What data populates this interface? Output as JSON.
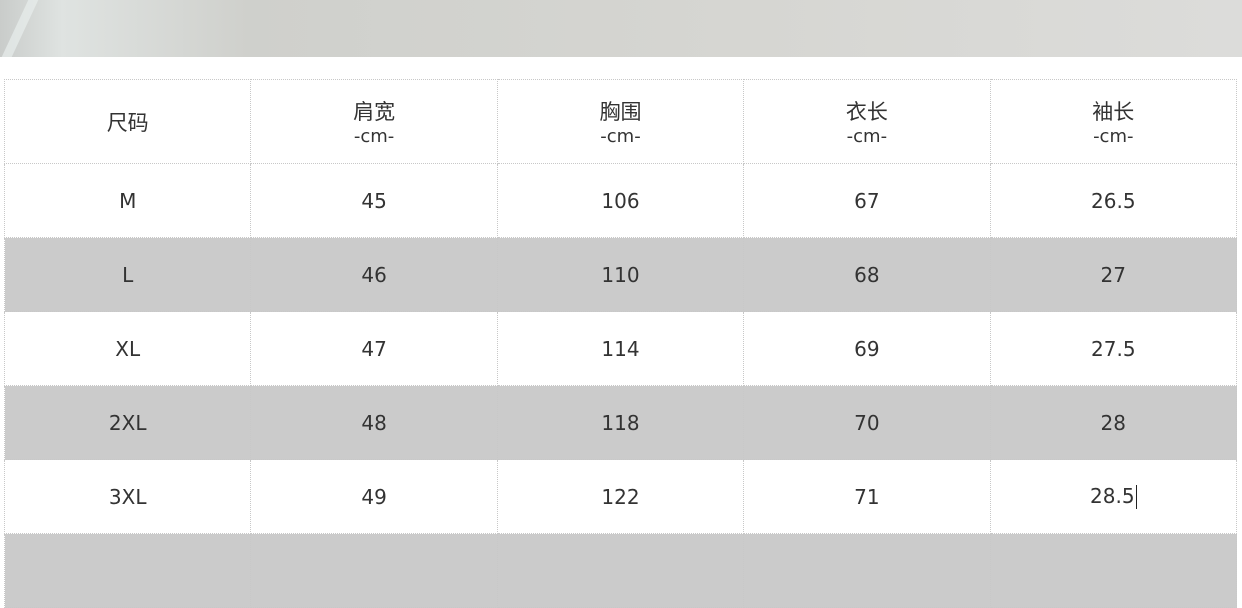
{
  "header": [
    {
      "name": "尺码",
      "unit": ""
    },
    {
      "name": "肩宽",
      "unit": "-cm-"
    },
    {
      "name": "胸围",
      "unit": "-cm-"
    },
    {
      "name": "衣长",
      "unit": "-cm-"
    },
    {
      "name": "袖长",
      "unit": "-cm-"
    }
  ],
  "rows": [
    [
      "M",
      "45",
      "106",
      "67",
      "26.5"
    ],
    [
      "L",
      "46",
      "110",
      "68",
      "27"
    ],
    [
      "XL",
      "47",
      "114",
      "69",
      "27.5"
    ],
    [
      "2XL",
      "48",
      "118",
      "70",
      "28"
    ],
    [
      "3XL",
      "49",
      "122",
      "71",
      "28.5"
    ],
    [
      "",
      "",
      "",
      "",
      ""
    ]
  ],
  "colors": {
    "alt_row": "#cbcbcb",
    "border": "#c8c8c8"
  }
}
